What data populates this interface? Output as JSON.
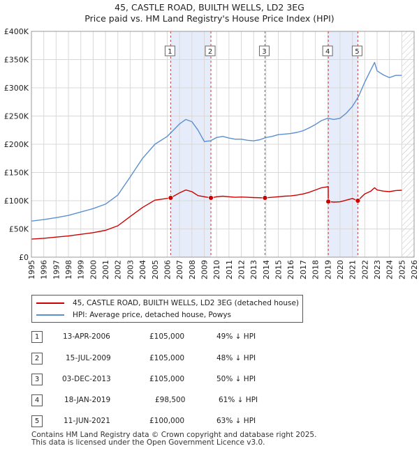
{
  "title_line1": "45, CASTLE ROAD, BUILTH WELLS, LD2 3EG",
  "title_line2": "Price paid vs. HM Land Registry's House Price Index (HPI)",
  "chart_data": {
    "type": "line",
    "title": "45, CASTLE ROAD, BUILTH WELLS, LD2 3EG — Price paid vs. HM Land Registry's House Price Index (HPI)",
    "xlabel": "",
    "ylabel": "",
    "xlim": [
      1995,
      2026
    ],
    "ylim": [
      0,
      400000
    ],
    "x_ticks": [
      1995,
      1996,
      1997,
      1998,
      1999,
      2000,
      2001,
      2002,
      2003,
      2004,
      2005,
      2006,
      2007,
      2008,
      2009,
      2010,
      2011,
      2012,
      2013,
      2014,
      2015,
      2016,
      2017,
      2018,
      2019,
      2020,
      2021,
      2022,
      2023,
      2024,
      2025,
      2026
    ],
    "y_ticks": [
      {
        "value": 0,
        "label": "£0"
      },
      {
        "value": 50000,
        "label": "£50K"
      },
      {
        "value": 100000,
        "label": "£100K"
      },
      {
        "value": 150000,
        "label": "£150K"
      },
      {
        "value": 200000,
        "label": "£200K"
      },
      {
        "value": 250000,
        "label": "£250K"
      },
      {
        "value": 300000,
        "label": "£300K"
      },
      {
        "value": 350000,
        "label": "£350K"
      },
      {
        "value": 400000,
        "label": "£400K"
      }
    ],
    "grid": true,
    "hatched_future_from": 2025.0,
    "series": [
      {
        "name": "HPI: Average price, detached house, Powys",
        "color": "#5b8fd0",
        "points": [
          [
            1995.0,
            64000
          ],
          [
            1996.0,
            66500
          ],
          [
            1997.0,
            70000
          ],
          [
            1998.0,
            74000
          ],
          [
            1999.0,
            80000
          ],
          [
            2000.0,
            86000
          ],
          [
            2001.0,
            94000
          ],
          [
            2002.0,
            110000
          ],
          [
            2003.0,
            142000
          ],
          [
            2004.0,
            175000
          ],
          [
            2005.0,
            200000
          ],
          [
            2006.0,
            214000
          ],
          [
            2006.5,
            225000
          ],
          [
            2007.0,
            236000
          ],
          [
            2007.5,
            244000
          ],
          [
            2008.0,
            240000
          ],
          [
            2008.5,
            225000
          ],
          [
            2009.0,
            205000
          ],
          [
            2009.5,
            206000
          ],
          [
            2010.0,
            212000
          ],
          [
            2010.5,
            214000
          ],
          [
            2011.0,
            211000
          ],
          [
            2011.5,
            209000
          ],
          [
            2012.0,
            209000
          ],
          [
            2012.5,
            207000
          ],
          [
            2013.0,
            206000
          ],
          [
            2013.5,
            208000
          ],
          [
            2014.0,
            212000
          ],
          [
            2014.5,
            214000
          ],
          [
            2015.0,
            217000
          ],
          [
            2015.5,
            218000
          ],
          [
            2016.0,
            219000
          ],
          [
            2016.5,
            221000
          ],
          [
            2017.0,
            224000
          ],
          [
            2017.5,
            229000
          ],
          [
            2018.0,
            235000
          ],
          [
            2018.5,
            242000
          ],
          [
            2019.0,
            246000
          ],
          [
            2019.5,
            244000
          ],
          [
            2020.0,
            246000
          ],
          [
            2020.5,
            255000
          ],
          [
            2021.0,
            267000
          ],
          [
            2021.5,
            285000
          ],
          [
            2022.0,
            310000
          ],
          [
            2022.5,
            332000
          ],
          [
            2022.8,
            345000
          ],
          [
            2023.0,
            330000
          ],
          [
            2023.5,
            323000
          ],
          [
            2024.0,
            318000
          ],
          [
            2024.5,
            322000
          ],
          [
            2025.0,
            322000
          ]
        ]
      },
      {
        "name": "45, CASTLE ROAD, BUILTH WELLS, LD2 3EG (detached house)",
        "color": "#cc0000",
        "points": [
          [
            1995.0,
            32000
          ],
          [
            1996.0,
            33500
          ],
          [
            1997.0,
            35500
          ],
          [
            1998.0,
            37500
          ],
          [
            1999.0,
            40500
          ],
          [
            2000.0,
            43500
          ],
          [
            2001.0,
            47500
          ],
          [
            2002.0,
            55500
          ],
          [
            2003.0,
            72000
          ],
          [
            2004.0,
            88000
          ],
          [
            2005.0,
            101000
          ],
          [
            2006.28,
            105000
          ],
          [
            2007.0,
            114000
          ],
          [
            2007.5,
            119000
          ],
          [
            2008.0,
            116000
          ],
          [
            2008.5,
            109000
          ],
          [
            2009.54,
            105000
          ],
          [
            2010.0,
            107000
          ],
          [
            2010.5,
            108000
          ],
          [
            2011.0,
            107000
          ],
          [
            2011.5,
            106000
          ],
          [
            2012.0,
            106500
          ],
          [
            2012.5,
            106000
          ],
          [
            2013.0,
            105500
          ],
          [
            2013.92,
            105000
          ],
          [
            2014.5,
            106000
          ],
          [
            2015.0,
            107000
          ],
          [
            2015.5,
            108000
          ],
          [
            2016.0,
            108500
          ],
          [
            2016.5,
            110000
          ],
          [
            2017.0,
            112000
          ],
          [
            2017.5,
            115000
          ],
          [
            2018.0,
            119000
          ],
          [
            2018.5,
            123000
          ],
          [
            2019.04,
            125000
          ],
          [
            2019.05,
            98500
          ],
          [
            2019.5,
            97500
          ],
          [
            2020.0,
            98000
          ],
          [
            2020.5,
            101000
          ],
          [
            2021.0,
            104000
          ],
          [
            2021.44,
            100000
          ],
          [
            2021.8,
            108000
          ],
          [
            2022.0,
            112000
          ],
          [
            2022.5,
            117000
          ],
          [
            2022.8,
            123000
          ],
          [
            2023.0,
            119000
          ],
          [
            2023.5,
            117000
          ],
          [
            2024.0,
            116000
          ],
          [
            2024.5,
            118000
          ],
          [
            2025.0,
            118500
          ]
        ]
      }
    ],
    "sales": [
      {
        "id": "1",
        "x": 2006.28,
        "value": 105000
      },
      {
        "id": "2",
        "x": 2009.54,
        "value": 105000
      },
      {
        "id": "3",
        "x": 2013.92,
        "value": 105000
      },
      {
        "id": "4",
        "x": 2019.05,
        "value": 98500
      },
      {
        "id": "5",
        "x": 2021.44,
        "value": 100000
      }
    ],
    "shaded_spans": [
      [
        2006.28,
        2009.54
      ],
      [
        2019.05,
        2021.44
      ]
    ]
  },
  "legend": {
    "property_label": "45, CASTLE ROAD, BUILTH WELLS, LD2 3EG (detached house)",
    "hpi_label": "HPI: Average price, detached house, Powys",
    "property_color": "#cc0000",
    "hpi_color": "#5b8fd0"
  },
  "transactions": [
    {
      "num": "1",
      "date": "13-APR-2006",
      "price": "£105,000",
      "hpi": "49% ↓ HPI"
    },
    {
      "num": "2",
      "date": "15-JUL-2009",
      "price": "£105,000",
      "hpi": "48% ↓ HPI"
    },
    {
      "num": "3",
      "date": "03-DEC-2013",
      "price": "£105,000",
      "hpi": "50% ↓ HPI"
    },
    {
      "num": "4",
      "date": "18-JAN-2019",
      "price": "£98,500",
      "hpi": "61% ↓ HPI"
    },
    {
      "num": "5",
      "date": "11-JUN-2021",
      "price": "£100,000",
      "hpi": "63% ↓ HPI"
    }
  ],
  "footer_line1": "Contains HM Land Registry data © Crown copyright and database right 2025.",
  "footer_line2": "This data is licensed under the Open Government Licence v3.0."
}
